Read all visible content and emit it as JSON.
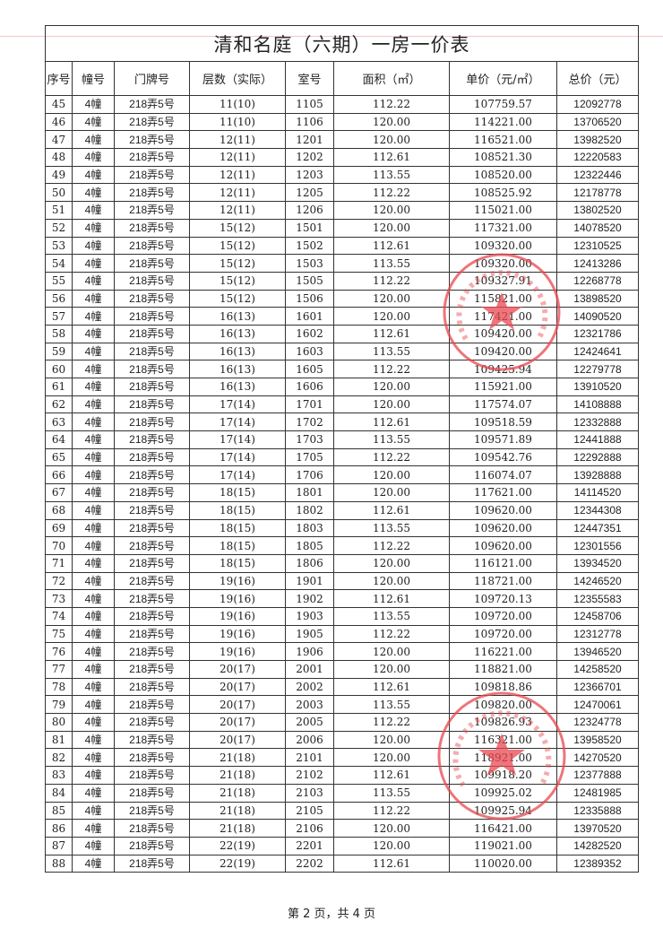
{
  "document": {
    "title": "清和名庭（六期）一房一价表",
    "columns": [
      "序号",
      "幢号",
      "门牌号",
      "层数（实际）",
      "室号",
      "面积（㎡）",
      "单价（元/㎡）",
      "总价（元）"
    ],
    "rows": [
      [
        "45",
        "4幢",
        "218弄5号",
        "11(10)",
        "1105",
        "112.22",
        "107759.57",
        "12092778"
      ],
      [
        "46",
        "4幢",
        "218弄5号",
        "11(10)",
        "1106",
        "120.00",
        "114221.00",
        "13706520"
      ],
      [
        "47",
        "4幢",
        "218弄5号",
        "12(11)",
        "1201",
        "120.00",
        "116521.00",
        "13982520"
      ],
      [
        "48",
        "4幢",
        "218弄5号",
        "12(11)",
        "1202",
        "112.61",
        "108521.30",
        "12220583"
      ],
      [
        "49",
        "4幢",
        "218弄5号",
        "12(11)",
        "1203",
        "113.55",
        "108520.00",
        "12322446"
      ],
      [
        "50",
        "4幢",
        "218弄5号",
        "12(11)",
        "1205",
        "112.22",
        "108525.92",
        "12178778"
      ],
      [
        "51",
        "4幢",
        "218弄5号",
        "12(11)",
        "1206",
        "120.00",
        "115021.00",
        "13802520"
      ],
      [
        "52",
        "4幢",
        "218弄5号",
        "15(12)",
        "1501",
        "120.00",
        "117321.00",
        "14078520"
      ],
      [
        "53",
        "4幢",
        "218弄5号",
        "15(12)",
        "1502",
        "112.61",
        "109320.00",
        "12310525"
      ],
      [
        "54",
        "4幢",
        "218弄5号",
        "15(12)",
        "1503",
        "113.55",
        "109320.00",
        "12413286"
      ],
      [
        "55",
        "4幢",
        "218弄5号",
        "15(12)",
        "1505",
        "112.22",
        "109327.91",
        "12268778"
      ],
      [
        "56",
        "4幢",
        "218弄5号",
        "15(12)",
        "1506",
        "120.00",
        "115821.00",
        "13898520"
      ],
      [
        "57",
        "4幢",
        "218弄5号",
        "16(13)",
        "1601",
        "120.00",
        "117421.00",
        "14090520"
      ],
      [
        "58",
        "4幢",
        "218弄5号",
        "16(13)",
        "1602",
        "112.61",
        "109420.00",
        "12321786"
      ],
      [
        "59",
        "4幢",
        "218弄5号",
        "16(13)",
        "1603",
        "113.55",
        "109420.00",
        "12424641"
      ],
      [
        "60",
        "4幢",
        "218弄5号",
        "16(13)",
        "1605",
        "112.22",
        "109425.94",
        "12279778"
      ],
      [
        "61",
        "4幢",
        "218弄5号",
        "16(13)",
        "1606",
        "120.00",
        "115921.00",
        "13910520"
      ],
      [
        "62",
        "4幢",
        "218弄5号",
        "17(14)",
        "1701",
        "120.00",
        "117574.07",
        "14108888"
      ],
      [
        "63",
        "4幢",
        "218弄5号",
        "17(14)",
        "1702",
        "112.61",
        "109518.59",
        "12332888"
      ],
      [
        "64",
        "4幢",
        "218弄5号",
        "17(14)",
        "1703",
        "113.55",
        "109571.89",
        "12441888"
      ],
      [
        "65",
        "4幢",
        "218弄5号",
        "17(14)",
        "1705",
        "112.22",
        "109542.76",
        "12292888"
      ],
      [
        "66",
        "4幢",
        "218弄5号",
        "17(14)",
        "1706",
        "120.00",
        "116074.07",
        "13928888"
      ],
      [
        "67",
        "4幢",
        "218弄5号",
        "18(15)",
        "1801",
        "120.00",
        "117621.00",
        "14114520"
      ],
      [
        "68",
        "4幢",
        "218弄5号",
        "18(15)",
        "1802",
        "112.61",
        "109620.00",
        "12344308"
      ],
      [
        "69",
        "4幢",
        "218弄5号",
        "18(15)",
        "1803",
        "113.55",
        "109620.00",
        "12447351"
      ],
      [
        "70",
        "4幢",
        "218弄5号",
        "18(15)",
        "1805",
        "112.22",
        "109620.00",
        "12301556"
      ],
      [
        "71",
        "4幢",
        "218弄5号",
        "18(15)",
        "1806",
        "120.00",
        "116121.00",
        "13934520"
      ],
      [
        "72",
        "4幢",
        "218弄5号",
        "19(16)",
        "1901",
        "120.00",
        "118721.00",
        "14246520"
      ],
      [
        "73",
        "4幢",
        "218弄5号",
        "19(16)",
        "1902",
        "112.61",
        "109720.13",
        "12355583"
      ],
      [
        "74",
        "4幢",
        "218弄5号",
        "19(16)",
        "1903",
        "113.55",
        "109720.00",
        "12458706"
      ],
      [
        "75",
        "4幢",
        "218弄5号",
        "19(16)",
        "1905",
        "112.22",
        "109720.00",
        "12312778"
      ],
      [
        "76",
        "4幢",
        "218弄5号",
        "19(16)",
        "1906",
        "120.00",
        "116221.00",
        "13946520"
      ],
      [
        "77",
        "4幢",
        "218弄5号",
        "20(17)",
        "2001",
        "120.00",
        "118821.00",
        "14258520"
      ],
      [
        "78",
        "4幢",
        "218弄5号",
        "20(17)",
        "2002",
        "112.61",
        "109818.86",
        "12366701"
      ],
      [
        "79",
        "4幢",
        "218弄5号",
        "20(17)",
        "2003",
        "113.55",
        "109820.00",
        "12470061"
      ],
      [
        "80",
        "4幢",
        "218弄5号",
        "20(17)",
        "2005",
        "112.22",
        "109826.93",
        "12324778"
      ],
      [
        "81",
        "4幢",
        "218弄5号",
        "20(17)",
        "2006",
        "120.00",
        "116321.00",
        "13958520"
      ],
      [
        "82",
        "4幢",
        "218弄5号",
        "21(18)",
        "2101",
        "120.00",
        "118921.00",
        "14270520"
      ],
      [
        "83",
        "4幢",
        "218弄5号",
        "21(18)",
        "2102",
        "112.61",
        "109918.20",
        "12377888"
      ],
      [
        "84",
        "4幢",
        "218弄5号",
        "21(18)",
        "2103",
        "113.55",
        "109925.02",
        "12481985"
      ],
      [
        "85",
        "4幢",
        "218弄5号",
        "21(18)",
        "2105",
        "112.22",
        "109925.94",
        "12335888"
      ],
      [
        "86",
        "4幢",
        "218弄5号",
        "21(18)",
        "2106",
        "120.00",
        "116421.00",
        "13970520"
      ],
      [
        "87",
        "4幢",
        "218弄5号",
        "22(19)",
        "2201",
        "120.00",
        "119021.00",
        "14282520"
      ],
      [
        "88",
        "4幢",
        "218弄5号",
        "22(19)",
        "2202",
        "112.61",
        "110020.00",
        "12389352"
      ]
    ],
    "footer": "第 2 页，共 4 页"
  },
  "stamps": [
    {
      "text": "上海市徐汇区住房保障和房屋管理局",
      "color": "#e8474f"
    },
    {
      "text": "上海长毅置业发展有限公司",
      "color": "#e8474f"
    }
  ]
}
